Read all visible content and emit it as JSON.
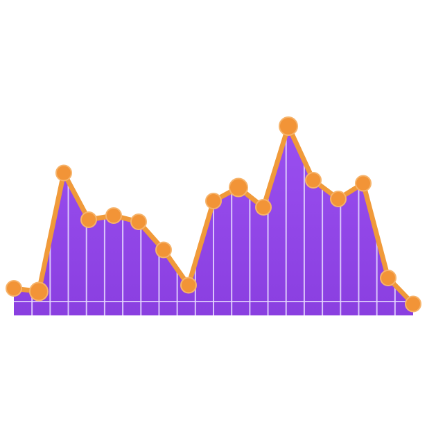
{
  "chart_data": {
    "type": "area",
    "x": [
      0,
      1,
      2,
      3,
      4,
      5,
      6,
      7,
      8,
      9,
      10,
      11,
      12,
      13,
      14,
      15,
      16
    ],
    "series": [
      {
        "values": [
          2.6,
          2.3,
          13.7,
          9.2,
          9.6,
          9.0,
          6.3,
          2.9,
          11.0,
          12.3,
          10.4,
          18.2,
          13.0,
          11.2,
          12.7,
          3.6,
          1.1
        ]
      }
    ],
    "ylim": [
      0,
      20
    ],
    "grid": false,
    "legend": "none",
    "colors": {
      "area": "#9a4ff0",
      "area_dark": "#8a3fe0",
      "line": "#f09a3a",
      "marker": "#f29437",
      "divider": "#e8dcff"
    }
  }
}
